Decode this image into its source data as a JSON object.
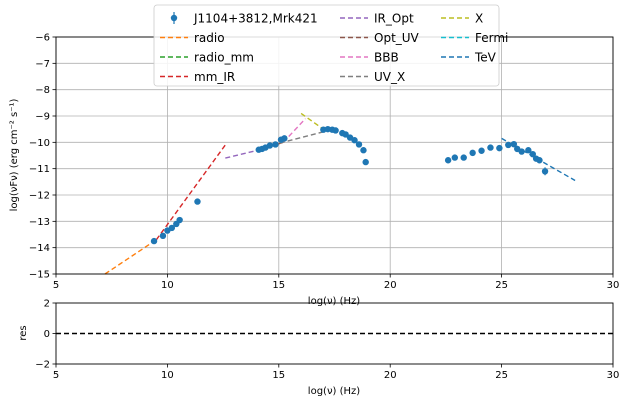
{
  "chart_data": [
    {
      "type": "scatter",
      "xlabel": "log(ν)  (Hz)",
      "ylabel": "log(νFν)  (erg cm⁻²  s⁻¹)",
      "xlim": [
        5,
        30
      ],
      "ylim": [
        -15,
        -6
      ],
      "x_ticks": [
        "5",
        "10",
        "15",
        "20",
        "25",
        "30"
      ],
      "y_ticks": [
        "−15",
        "−14",
        "−13",
        "−12",
        "−11",
        "−10",
        "−9",
        "−8",
        "−7",
        "−6"
      ],
      "grid": true,
      "legend": {
        "placement": "top-center",
        "entries": [
          {
            "label": "J1104+3812,Mrk421",
            "color": "#1f77b4",
            "style": "marker"
          },
          {
            "label": "radio",
            "color": "#ff7f0e",
            "style": "dashed"
          },
          {
            "label": "radio_mm",
            "color": "#2ca02c",
            "style": "dashed"
          },
          {
            "label": "mm_IR",
            "color": "#d62728",
            "style": "dashed"
          },
          {
            "label": "IR_Opt",
            "color": "#9467bd",
            "style": "dashed"
          },
          {
            "label": "Opt_UV",
            "color": "#8c564b",
            "style": "dashed"
          },
          {
            "label": "BBB",
            "color": "#e377c2",
            "style": "dashed"
          },
          {
            "label": "UV_X",
            "color": "#7f7f7f",
            "style": "dashed"
          },
          {
            "label": "X",
            "color": "#bcbd22",
            "style": "dashed"
          },
          {
            "label": "Fermi",
            "color": "#17becf",
            "style": "dashed"
          },
          {
            "label": "TeV",
            "color": "#1f77b4",
            "style": "dashed"
          }
        ]
      },
      "points": {
        "name": "J1104+3812,Mrk421",
        "color": "#1f77b4",
        "x": [
          9.4,
          9.8,
          10.0,
          10.2,
          10.4,
          10.55,
          11.35,
          14.1,
          14.25,
          14.4,
          14.6,
          14.85,
          15.1,
          15.25,
          17.0,
          17.2,
          17.4,
          17.55,
          17.85,
          18.0,
          18.2,
          18.4,
          18.6,
          18.8,
          18.9,
          22.6,
          22.9,
          23.3,
          23.7,
          24.1,
          24.5,
          24.9,
          25.3,
          25.55,
          25.7,
          25.9,
          26.2,
          26.4,
          26.55,
          26.7,
          26.95
        ],
        "y": [
          -13.75,
          -13.55,
          -13.35,
          -13.25,
          -13.1,
          -12.95,
          -12.25,
          -10.28,
          -10.25,
          -10.2,
          -10.12,
          -10.08,
          -9.9,
          -9.85,
          -9.52,
          -9.5,
          -9.52,
          -9.55,
          -9.65,
          -9.7,
          -9.82,
          -9.92,
          -10.08,
          -10.3,
          -10.75,
          -10.68,
          -10.58,
          -10.58,
          -10.4,
          -10.32,
          -10.2,
          -10.22,
          -10.1,
          -10.07,
          -10.25,
          -10.35,
          -10.3,
          -10.45,
          -10.62,
          -10.68,
          -11.1
        ],
        "yerr": [
          0.08,
          0.08,
          0.08,
          0.08,
          0.08,
          0.08,
          0.08,
          0.06,
          0.06,
          0.06,
          0.06,
          0.06,
          0.06,
          0.06,
          0.05,
          0.05,
          0.05,
          0.05,
          0.05,
          0.05,
          0.05,
          0.05,
          0.05,
          0.05,
          0.1,
          0.08,
          0.06,
          0.06,
          0.06,
          0.06,
          0.06,
          0.06,
          0.1,
          0.1,
          0.12,
          0.1,
          0.1,
          0.1,
          0.1,
          0.1,
          0.15
        ]
      },
      "segments": [
        {
          "name": "radio",
          "color": "#ff7f0e",
          "x": [
            7.2,
            9.5
          ],
          "y": [
            -15.0,
            -13.7
          ]
        },
        {
          "name": "mm_IR",
          "color": "#d62728",
          "x": [
            9.5,
            12.6
          ],
          "y": [
            -13.7,
            -10.1
          ]
        },
        {
          "name": "IR_Opt",
          "color": "#9467bd",
          "x": [
            12.6,
            14.3
          ],
          "y": [
            -10.6,
            -10.25
          ]
        },
        {
          "name": "Opt_UV",
          "color": "#8c564b",
          "x": [
            14.3,
            15.2
          ],
          "y": [
            -10.25,
            -10.0
          ]
        },
        {
          "name": "BBB",
          "color": "#e377c2",
          "x": [
            15.2,
            16.2
          ],
          "y": [
            -10.0,
            -9.1
          ]
        },
        {
          "name": "UV_X",
          "color": "#7f7f7f",
          "x": [
            14.7,
            17.0
          ],
          "y": [
            -10.1,
            -9.6
          ]
        },
        {
          "name": "X",
          "color": "#bcbd22",
          "x": [
            16.0,
            17.0
          ],
          "y": [
            -8.9,
            -9.5
          ]
        },
        {
          "name": "TeV",
          "color": "#1f77b4",
          "x": [
            25.0,
            28.3
          ],
          "y": [
            -9.85,
            -11.45
          ]
        }
      ]
    },
    {
      "type": "line",
      "xlabel": "log(ν)  (Hz)",
      "ylabel": "res",
      "xlim": [
        5,
        30
      ],
      "ylim": [
        -2,
        2
      ],
      "x_ticks": [
        "5",
        "10",
        "15",
        "20",
        "25",
        "30"
      ],
      "y_ticks": [
        "−2",
        "0",
        "2"
      ],
      "reference_line": {
        "y": 0,
        "color": "#000000",
        "style": "dashed"
      }
    }
  ]
}
